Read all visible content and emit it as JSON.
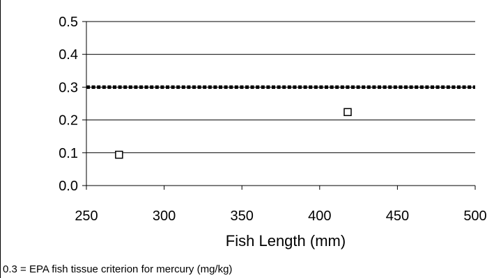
{
  "chart_data": {
    "type": "scatter",
    "title": "",
    "xlabel": "Fish Length (mm)",
    "ylabel": "",
    "xlim": [
      250,
      500
    ],
    "ylim": [
      0.0,
      0.5
    ],
    "x_ticks": [
      "250",
      "300",
      "350",
      "400",
      "450",
      "500"
    ],
    "y_ticks": [
      "0.0",
      "0.1",
      "0.2",
      "0.3",
      "0.4",
      "0.5"
    ],
    "grid": "horizontal",
    "legend": "none",
    "series": [
      {
        "points": [
          {
            "x": 271,
            "y": 0.094
          },
          {
            "x": 418,
            "y": 0.224
          }
        ],
        "marker": "open-square",
        "color": "#000000"
      }
    ],
    "reference_line": {
      "y": 0.3,
      "style": "dotted",
      "color": "#000000"
    },
    "footnote": "0.3 = EPA fish tissue criterion for mercury (mg/kg)"
  }
}
